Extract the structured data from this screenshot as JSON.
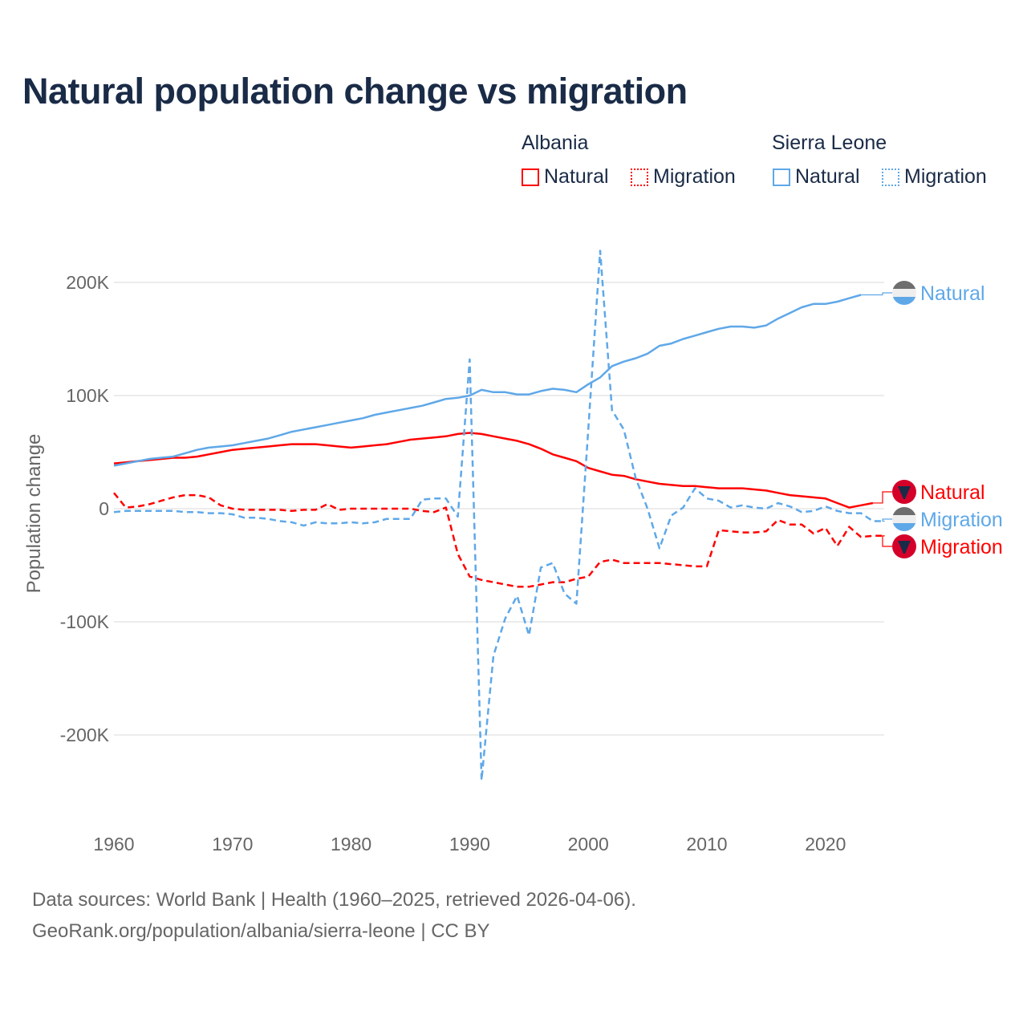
{
  "title": "Natural population change vs migration",
  "legend": {
    "groups": [
      {
        "name": "Albania",
        "items": [
          {
            "label": "Natural",
            "style": "solid",
            "color": "#ff0000"
          },
          {
            "label": "Migration",
            "style": "dotted",
            "color": "#ff0000"
          }
        ]
      },
      {
        "name": "Sierra Leone",
        "items": [
          {
            "label": "Natural",
            "style": "solid",
            "color": "#5fa8e8"
          },
          {
            "label": "Migration",
            "style": "dotted",
            "color": "#5fa8e8"
          }
        ]
      }
    ]
  },
  "footer": {
    "line1": "Data sources: World Bank | Health (1960–2025, retrieved 2026-04-06).",
    "line2": "GeoRank.org/population/albania/sierra-leone | CC BY"
  },
  "chart_data": {
    "type": "line",
    "title": "Natural population change vs migration",
    "xlabel": "",
    "ylabel": "Population change",
    "xlim": [
      1960,
      2025
    ],
    "ylim": [
      -260000,
      240000
    ],
    "x_ticks": [
      1960,
      1970,
      1980,
      1990,
      2000,
      2010,
      2020
    ],
    "x_tick_labels": [
      "1960",
      "1970",
      "1980",
      "1990",
      "2000",
      "2010",
      "2020"
    ],
    "y_ticks": [
      200000,
      100000,
      0,
      -100000,
      -200000
    ],
    "y_tick_labels": [
      "200K",
      "100K",
      "0",
      "-100K",
      "-200K"
    ],
    "grid": true,
    "series": [
      {
        "name": "Albania Natural",
        "label": "Natural",
        "country": "Albania",
        "color": "#ff0000",
        "dash": false,
        "start": 1960,
        "values": [
          40,
          41,
          42,
          43,
          44,
          45,
          45,
          46,
          48,
          50,
          52,
          53,
          54,
          55,
          56,
          57,
          57,
          57,
          56,
          55,
          54,
          55,
          56,
          57,
          59,
          61,
          62,
          63,
          64,
          66,
          67,
          66,
          64,
          62,
          60,
          57,
          53,
          48,
          45,
          42,
          36,
          33,
          30,
          29,
          26,
          24,
          22,
          21,
          20,
          20,
          19,
          18,
          18,
          18,
          17,
          16,
          14,
          12,
          11,
          10,
          9,
          5,
          1,
          3,
          5
        ],
        "end_label": "Natural"
      },
      {
        "name": "Albania Migration",
        "label": "Migration",
        "country": "Albania",
        "color": "#ff0000",
        "dash": true,
        "start": 1960,
        "values": [
          14,
          1,
          2,
          4,
          7,
          10,
          12,
          12,
          10,
          3,
          0,
          -1,
          -1,
          -1,
          -1,
          -2,
          -1,
          -1,
          4,
          -1,
          0,
          0,
          0,
          0,
          0,
          0,
          -2,
          -3,
          1,
          -40,
          -60,
          -63,
          -65,
          -67,
          -69,
          -69,
          -67,
          -65,
          -65,
          -62,
          -60,
          -47,
          -45,
          -48,
          -48,
          -48,
          -48,
          -49,
          -50,
          -51,
          -51,
          -19,
          -20,
          -21,
          -21,
          -20,
          -10,
          -14,
          -14,
          -22,
          -17,
          -33,
          -16,
          -25,
          -24,
          -24
        ],
        "end_label": "Migration"
      },
      {
        "name": "Sierra Leone Natural",
        "label": "Natural",
        "country": "Sierra Leone",
        "color": "#5fa8e8",
        "dash": false,
        "start": 1960,
        "values": [
          38,
          40,
          42,
          44,
          45,
          46,
          49,
          52,
          54,
          55,
          56,
          58,
          60,
          62,
          65,
          68,
          70,
          72,
          74,
          76,
          78,
          80,
          83,
          85,
          87,
          89,
          91,
          94,
          97,
          98,
          100,
          105,
          103,
          103,
          101,
          101,
          104,
          106,
          105,
          103,
          110,
          116,
          126,
          130,
          133,
          137,
          144,
          146,
          150,
          153,
          156,
          159,
          161,
          161,
          160,
          162,
          168,
          173,
          178,
          181,
          181,
          183,
          186,
          189
        ],
        "end_label": "Natural"
      },
      {
        "name": "Sierra Leone Migration",
        "label": "Migration",
        "country": "Sierra Leone",
        "color": "#5fa8e8",
        "dash": true,
        "start": 1960,
        "values": [
          -3,
          -2,
          -2,
          -2,
          -2,
          -2,
          -3,
          -3,
          -4,
          -4,
          -5,
          -8,
          -8,
          -9,
          -11,
          -12,
          -15,
          -12,
          -13,
          -13,
          -12,
          -13,
          -12,
          -9,
          -9,
          -9,
          8,
          9,
          9,
          -7,
          132,
          -240,
          -130,
          -97,
          -77,
          -112,
          -52,
          -48,
          -75,
          -84,
          70,
          228,
          87,
          70,
          27,
          0,
          -35,
          -6,
          1,
          18,
          9,
          7,
          1,
          3,
          1,
          0,
          5,
          2,
          -3,
          -2,
          2,
          -2,
          -4,
          -4,
          -11,
          -11
        ],
        "end_label": "Migration"
      }
    ],
    "value_unit": "thousands"
  }
}
